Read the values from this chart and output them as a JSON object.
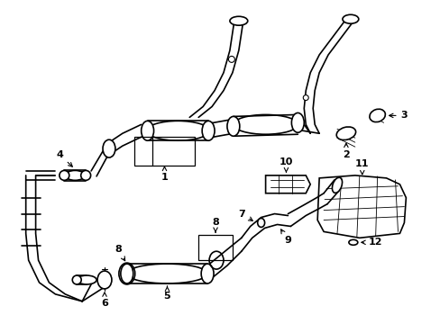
{
  "bg_color": "#ffffff",
  "line_color": "#000000",
  "figsize": [
    4.89,
    3.6
  ],
  "dpi": 100,
  "lw": 1.2
}
